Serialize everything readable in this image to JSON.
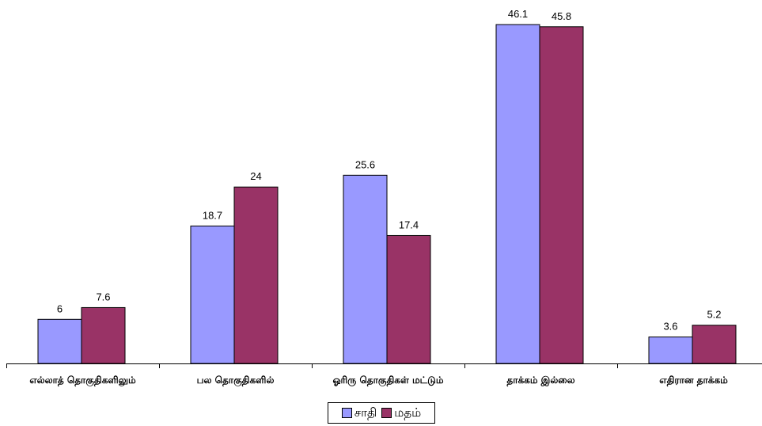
{
  "chart_data": {
    "type": "bar",
    "categories": [
      "எல்லாத் தொகுதிகளிலும்",
      "பல தொகுதிகளில்",
      "ஓரிரு தொகுதிகள் மட்டும்",
      "தாக்கம் இல்லை",
      "எதிரான தாக்கம்"
    ],
    "series": [
      {
        "name": "சாதி",
        "values": [
          6,
          18.7,
          25.6,
          46.1,
          3.6
        ],
        "color": "#9999ff"
      },
      {
        "name": "மதம்",
        "values": [
          7.6,
          24,
          17.4,
          45.8,
          5.2
        ],
        "color": "#993366"
      }
    ],
    "data_labels": true,
    "ylim": [
      0,
      47
    ],
    "grid": false,
    "legend_position": "bottom"
  }
}
